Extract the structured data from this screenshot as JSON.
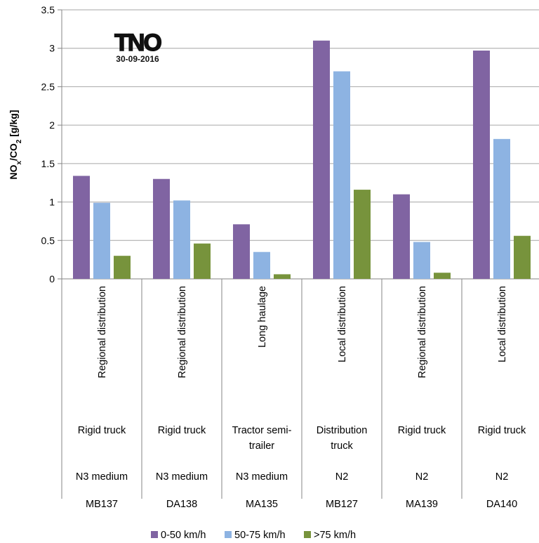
{
  "chart_data": {
    "type": "bar",
    "ylabel": "NOx/CO2 [g/kg]",
    "ylabel_parts": {
      "main": "NO",
      "sub1": "x",
      "mid": "/CO",
      "sub2": "2",
      "tail": " [g/kg]"
    },
    "ylim": [
      0,
      3.5
    ],
    "yticks": [
      0,
      0.5,
      1,
      1.5,
      2,
      2.5,
      3,
      3.5
    ],
    "ytick_labels": [
      "0",
      "0.5",
      "1",
      "1.5",
      "2",
      "2.5",
      "3",
      "3.5"
    ],
    "grid": true,
    "legend_position": "bottom",
    "categories": [
      {
        "code": "MB137",
        "class": "N3 medium",
        "vehicle": [
          "Rigid truck"
        ],
        "usage": "Regional distribution"
      },
      {
        "code": "DA138",
        "class": "N3 medium",
        "vehicle": [
          "Rigid truck"
        ],
        "usage": "Regional distribution"
      },
      {
        "code": "MA135",
        "class": "N3 medium",
        "vehicle": [
          "Tractor semi-",
          "trailer"
        ],
        "usage": "Long haulage"
      },
      {
        "code": "MB127",
        "class": "N2",
        "vehicle": [
          "Distribution",
          "truck"
        ],
        "usage": "Local distribution"
      },
      {
        "code": "MA139",
        "class": "N2",
        "vehicle": [
          "Rigid truck"
        ],
        "usage": "Regional distribution"
      },
      {
        "code": "DA140",
        "class": "N2",
        "vehicle": [
          "Rigid truck"
        ],
        "usage": "Local distribution"
      }
    ],
    "series": [
      {
        "name": "0-50 km/h",
        "color": "#8064a2",
        "values": [
          1.34,
          1.3,
          0.71,
          3.1,
          1.1,
          2.97
        ]
      },
      {
        "name": "50-75 km/h",
        "color": "#8db3e2",
        "values": [
          0.99,
          1.02,
          0.35,
          2.7,
          0.48,
          1.82
        ]
      },
      {
        "name": ">75 km/h",
        "color": "#77933c",
        "values": [
          0.3,
          0.46,
          0.06,
          1.16,
          0.08,
          0.56
        ]
      }
    ]
  },
  "logo": {
    "text": "TNO",
    "date": "30-09-2016"
  }
}
